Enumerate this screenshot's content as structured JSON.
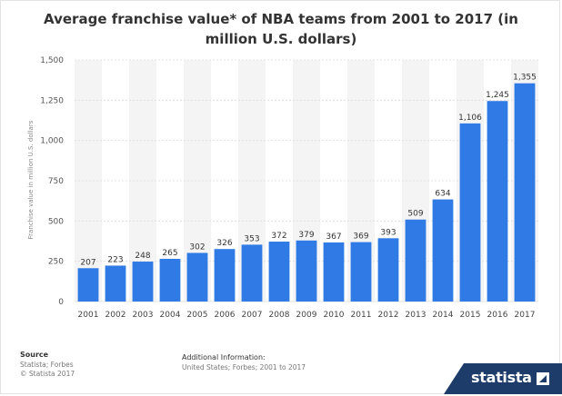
{
  "title": "Average franchise value* of NBA teams from 2001 to 2017 (in million U.S. dollars)",
  "footer": {
    "source_title": "Source",
    "source_lines": [
      "Statista; Forbes",
      "© Statista 2017"
    ],
    "additional_title": "Additional Information:",
    "additional_text": "United States; Forbes; 2001 to 2017"
  },
  "brand": {
    "name": "statista",
    "icon": "statista-logo-icon",
    "color": "#1d3c6a"
  },
  "chart_data": {
    "type": "bar",
    "title": "Average franchise value* of NBA teams from 2001 to 2017 (in million U.S. dollars)",
    "xlabel": "",
    "ylabel": "Franchise value in million U.S. dollars",
    "ylim": [
      0,
      1500
    ],
    "yticks": [
      0,
      250,
      500,
      750,
      1000,
      1250,
      1500
    ],
    "ytick_labels": [
      "0",
      "250",
      "500",
      "750",
      "1,000",
      "1,250",
      "1,500"
    ],
    "categories": [
      "2001",
      "2002",
      "2003",
      "2004",
      "2005",
      "2006",
      "2007",
      "2008",
      "2009",
      "2010",
      "2011",
      "2012",
      "2013",
      "2014",
      "2015",
      "2016",
      "2017"
    ],
    "values": [
      207,
      223,
      248,
      265,
      302,
      326,
      353,
      372,
      379,
      367,
      369,
      393,
      509,
      634,
      1106,
      1245,
      1355
    ],
    "value_labels": [
      "207",
      "223",
      "248",
      "265",
      "302",
      "326",
      "353",
      "372",
      "379",
      "367",
      "369",
      "393",
      "509",
      "634",
      "1,106",
      "1,245",
      "1,355"
    ],
    "bar_color": "#2f7ae5",
    "grid": true,
    "legend": "none"
  }
}
